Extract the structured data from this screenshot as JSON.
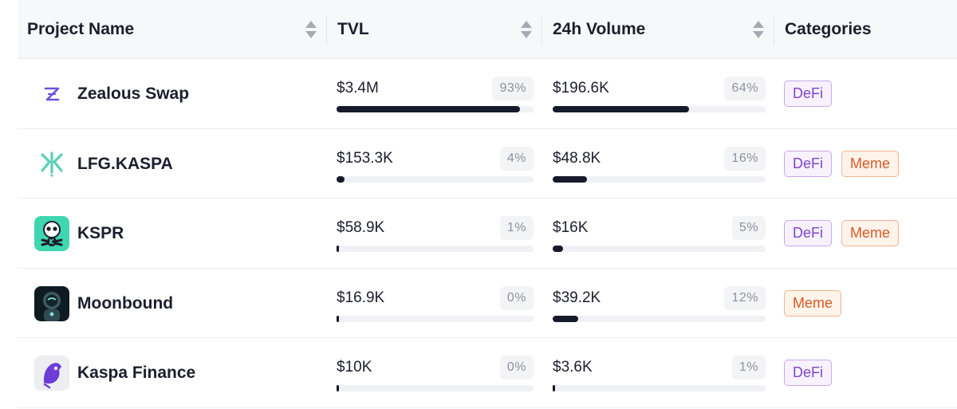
{
  "columns": {
    "project": "Project Name",
    "tvl": "TVL",
    "volume": "24h Volume",
    "categories": "Categories"
  },
  "rows": [
    {
      "name": "Zealous Swap",
      "icon": "zealous-swap-logo-icon",
      "tvl": "$3.4M",
      "tvl_pct": "93%",
      "tvl_fraction": 0.93,
      "volume": "$196.6K",
      "volume_pct": "64%",
      "volume_fraction": 0.64,
      "categories": [
        "DeFi"
      ]
    },
    {
      "name": "LFG.KASPA",
      "icon": "lfg-kaspa-logo-icon",
      "tvl": "$153.3K",
      "tvl_pct": "4%",
      "tvl_fraction": 0.04,
      "volume": "$48.8K",
      "volume_pct": "16%",
      "volume_fraction": 0.16,
      "categories": [
        "DeFi",
        "Meme"
      ]
    },
    {
      "name": "KSPR",
      "icon": "kspr-logo-icon",
      "tvl": "$58.9K",
      "tvl_pct": "1%",
      "tvl_fraction": 0.01,
      "volume": "$16K",
      "volume_pct": "5%",
      "volume_fraction": 0.05,
      "categories": [
        "DeFi",
        "Meme"
      ]
    },
    {
      "name": "Moonbound",
      "icon": "moonbound-logo-icon",
      "tvl": "$16.9K",
      "tvl_pct": "0%",
      "tvl_fraction": 0.0,
      "volume": "$39.2K",
      "volume_pct": "12%",
      "volume_fraction": 0.12,
      "categories": [
        "Meme"
      ]
    },
    {
      "name": "Kaspa Finance",
      "icon": "kaspa-finance-logo-icon",
      "tvl": "$10K",
      "tvl_pct": "0%",
      "tvl_fraction": 0.0,
      "volume": "$3.6K",
      "volume_pct": "1%",
      "volume_fraction": 0.01,
      "categories": [
        "DeFi"
      ]
    }
  ],
  "colors": {
    "bar_fill": "#171a2b",
    "defi_text": "#7f45c8",
    "meme_text": "#d55b24",
    "lfg_teal": "#5ccfb8",
    "kspr_teal": "#3fd7b0"
  }
}
